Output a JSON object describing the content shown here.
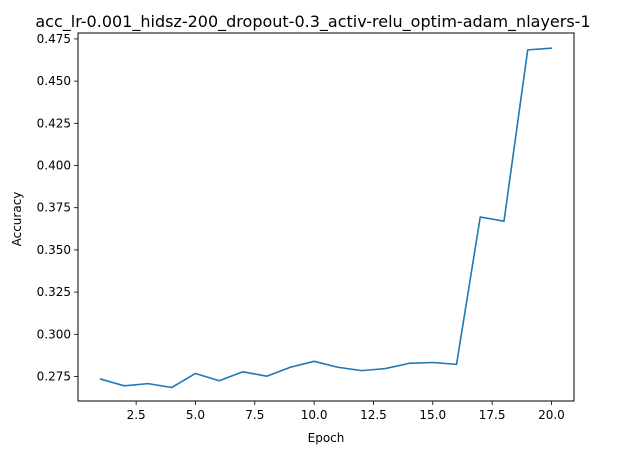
{
  "chart_data": {
    "type": "line",
    "title": "acc_lr-0.001_hidsz-200_dropout-0.3_activ-relu_optim-adam_nlayers-1",
    "xlabel": "Epoch",
    "ylabel": "Accuracy",
    "xlim": [
      0.05,
      20.95
    ],
    "ylim": [
      0.2605,
      0.4785
    ],
    "xticks": [
      2.5,
      5.0,
      7.5,
      10.0,
      12.5,
      15.0,
      17.5,
      20.0
    ],
    "xtick_labels": [
      "2.5",
      "5.0",
      "7.5",
      "10.0",
      "12.5",
      "15.0",
      "17.5",
      "20.0"
    ],
    "yticks": [
      0.275,
      0.3,
      0.325,
      0.35,
      0.375,
      0.4,
      0.425,
      0.45,
      0.475
    ],
    "ytick_labels": [
      "0.275",
      "0.300",
      "0.325",
      "0.350",
      "0.375",
      "0.400",
      "0.425",
      "0.450",
      "0.475"
    ],
    "grid": false,
    "series": [
      {
        "color": "#1f77b4",
        "x": [
          1,
          2,
          3,
          4,
          5,
          6,
          7,
          8,
          9,
          10,
          11,
          12,
          13,
          14,
          15,
          16,
          17,
          18,
          19,
          20
        ],
        "values": [
          0.2735,
          0.2695,
          0.2708,
          0.2685,
          0.2768,
          0.2725,
          0.2778,
          0.2752,
          0.2805,
          0.284,
          0.2805,
          0.2785,
          0.2797,
          0.2828,
          0.2833,
          0.2822,
          0.3695,
          0.367,
          0.4685,
          0.4695
        ]
      }
    ]
  }
}
